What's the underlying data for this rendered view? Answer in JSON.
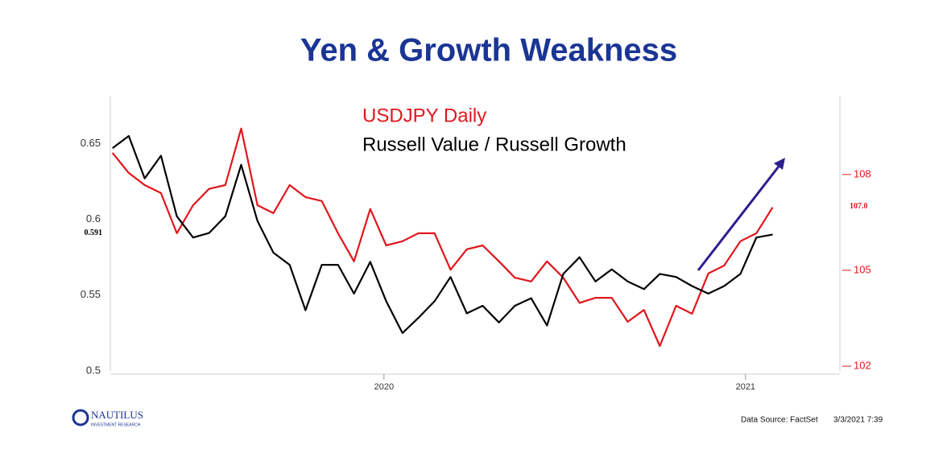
{
  "chart_data": {
    "type": "line",
    "title": "Yen & Growth Weakness",
    "x": [
      2019.249,
      2019.294,
      2019.338,
      2019.383,
      2019.427,
      2019.472,
      2019.516,
      2019.561,
      2019.605,
      2019.65,
      2019.694,
      2019.739,
      2019.783,
      2019.828,
      2019.873,
      2019.917,
      2019.962,
      2020.006,
      2020.051,
      2020.095,
      2020.14,
      2020.184,
      2020.229,
      2020.273,
      2020.318,
      2020.362,
      2020.407,
      2020.451,
      2020.496,
      2020.541,
      2020.585,
      2020.63,
      2020.674,
      2020.719,
      2020.763,
      2020.808,
      2020.852,
      2020.897,
      2020.941,
      2020.986,
      2021.03,
      2021.075
    ],
    "series": [
      {
        "name": "USDJPY Daily",
        "color": "#e0161b",
        "axis": "y2",
        "values": [
          108.68,
          108.05,
          107.67,
          107.42,
          106.16,
          107.04,
          107.55,
          107.67,
          109.44,
          107.04,
          106.79,
          107.67,
          107.29,
          107.17,
          106.16,
          105.28,
          106.92,
          105.78,
          105.91,
          106.16,
          106.16,
          105.02,
          105.66,
          105.78,
          105.28,
          104.77,
          104.65,
          105.28,
          104.77,
          103.98,
          104.14,
          104.14,
          103.39,
          103.76,
          102.63,
          103.89,
          103.64,
          104.9,
          105.15,
          105.91,
          106.16,
          106.97
        ]
      },
      {
        "name": "Russell Value / Russell Growth",
        "color": "#000000",
        "values": [
          0.647,
          0.655,
          0.627,
          0.642,
          0.602,
          0.588,
          0.591,
          0.602,
          0.636,
          0.599,
          0.578,
          0.57,
          0.54,
          0.57,
          0.57,
          0.551,
          0.572,
          0.546,
          0.525,
          0.535,
          0.546,
          0.562,
          0.538,
          0.543,
          0.532,
          0.543,
          0.548,
          0.53,
          0.564,
          0.575,
          0.559,
          0.567,
          0.559,
          0.554,
          0.564,
          0.562,
          0.556,
          0.551,
          0.556,
          0.564,
          0.588,
          0.59
        ]
      }
    ],
    "xlim": [
      2019.243,
      2021.261
    ],
    "xticks": [
      {
        "value": 2020,
        "label": "2020"
      },
      {
        "value": 2021,
        "label": "2021"
      }
    ],
    "ylim": [
      0.5,
      0.681
    ],
    "yticks": [
      {
        "value": 0.5,
        "label": "0.5"
      },
      0.55,
      {
        "value": 0.6,
        "label": "0.6"
      },
      0.65
    ],
    "y2lim": [
      101.85,
      110.44
    ],
    "y2ticks": [
      102,
      105,
      108
    ],
    "y2color": "#e0161b",
    "annotations": [
      {
        "text": "0.591",
        "value": 0.591,
        "axis": "y"
      },
      {
        "text": "107.0",
        "value": 107.0,
        "axis": "y2"
      }
    ]
  },
  "footer": {
    "logo": "NAUTILUS",
    "logo_sub": "INVESTMENT RESEARCH",
    "source": "Data Source: FactSet",
    "timestamp": "3/3/2021 7:39"
  }
}
